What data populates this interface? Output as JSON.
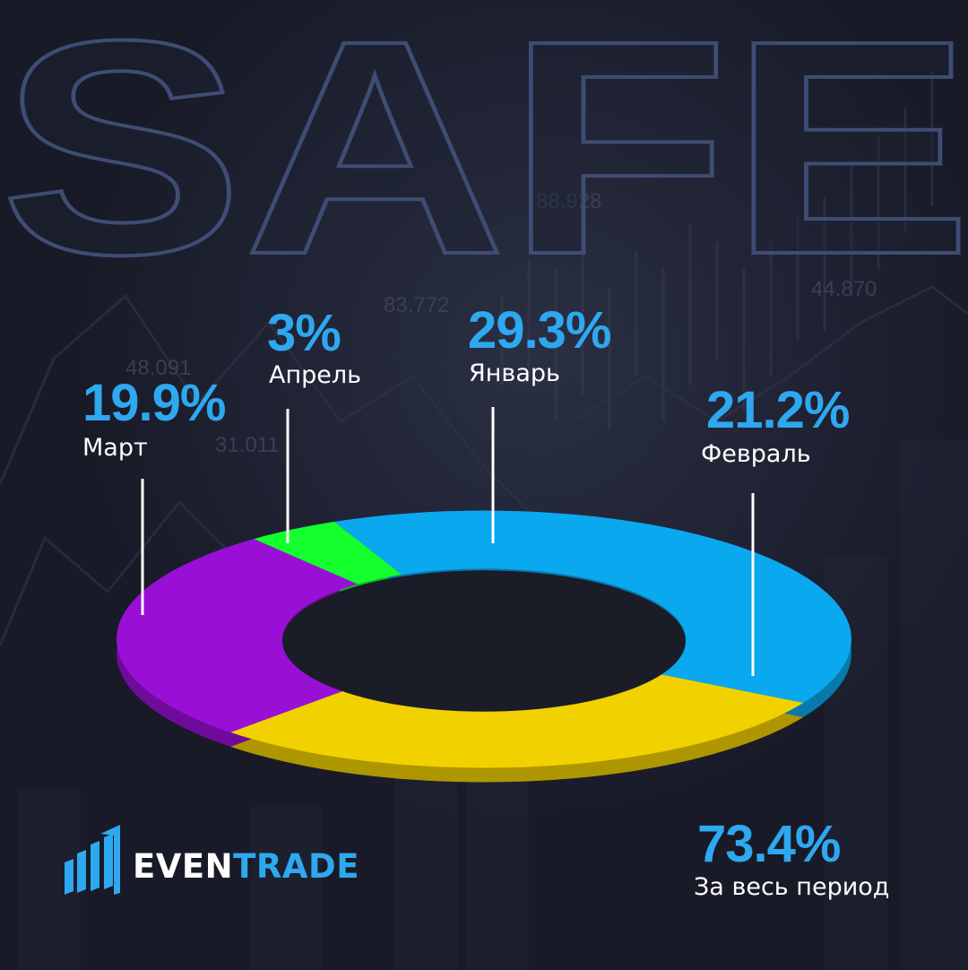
{
  "background_word": "SAFE",
  "background_numbers": [
    "88.928",
    "83.772",
    "44.870",
    "48.091",
    "31.011"
  ],
  "chart_data": {
    "type": "pie",
    "style": "3d-donut",
    "slices": [
      {
        "label": "Январь",
        "value": 29.3,
        "display": "29.3%",
        "color": "#0aa8ee"
      },
      {
        "label": "Февраль",
        "value": 21.2,
        "display": "21.2%",
        "color": "#f1d100"
      },
      {
        "label": "Март",
        "value": 19.9,
        "display": "19.9%",
        "color": "#9a0fd6"
      },
      {
        "label": "Апрель",
        "value": 3,
        "display": "3%",
        "color": "#14ff2e"
      }
    ],
    "total": {
      "label": "За весь период",
      "value": 73.4,
      "display": "73.4%"
    }
  },
  "brand": {
    "part1": "EVEN",
    "part2": "TRADE"
  },
  "colors": {
    "accent": "#2ea8ef",
    "background": "#1b1d2b",
    "label_text": "#ffffff"
  }
}
